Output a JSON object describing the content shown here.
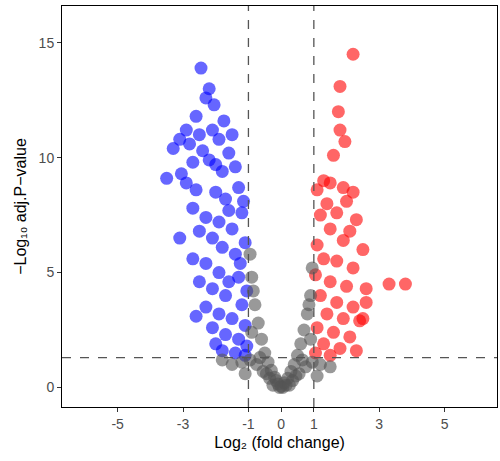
{
  "chart_data": {
    "type": "scatter",
    "x_label": "Log₂ (fold change)",
    "y_label": "−Log₁₀ adj.P−value",
    "xlim": [
      -6.7,
      6.6
    ],
    "ylim": [
      -0.85,
      16.6
    ],
    "xticks": [
      -5,
      -3,
      -1,
      0,
      1,
      3,
      5
    ],
    "yticks": [
      0,
      5,
      10,
      15
    ],
    "grid": false,
    "reference_lines": {
      "x": [
        -1,
        1
      ],
      "y": [
        1.3
      ]
    },
    "series": [
      {
        "color": "#0000ff",
        "marker": "circle",
        "points": [
          [
            -2.45,
            13.9
          ],
          [
            -2.2,
            13.0
          ],
          [
            -2.3,
            12.6
          ],
          [
            -2.05,
            12.3
          ],
          [
            -1.75,
            11.6
          ],
          [
            -2.6,
            11.8
          ],
          [
            -3.1,
            10.8
          ],
          [
            -3.3,
            10.4
          ],
          [
            -3.5,
            9.1
          ],
          [
            -3.05,
            9.3
          ],
          [
            -3.1,
            6.5
          ],
          [
            -2.7,
            9.8
          ],
          [
            -2.5,
            11.0
          ],
          [
            -2.1,
            11.2
          ],
          [
            -1.9,
            10.8
          ],
          [
            -1.6,
            10.2
          ],
          [
            -1.4,
            9.6
          ],
          [
            -2.8,
            10.6
          ],
          [
            -2.4,
            10.3
          ],
          [
            -2.2,
            9.9
          ],
          [
            -1.8,
            9.4
          ],
          [
            -1.3,
            8.7
          ],
          [
            -2.9,
            8.9
          ],
          [
            -2.6,
            8.6
          ],
          [
            -2.0,
            8.5
          ],
          [
            -1.7,
            8.2
          ],
          [
            -1.2,
            7.6
          ],
          [
            -2.7,
            7.8
          ],
          [
            -2.3,
            7.4
          ],
          [
            -1.9,
            7.2
          ],
          [
            -1.5,
            6.9
          ],
          [
            -1.1,
            6.3
          ],
          [
            -2.5,
            6.8
          ],
          [
            -2.1,
            6.5
          ],
          [
            -1.8,
            6.1
          ],
          [
            -1.4,
            5.8
          ],
          [
            -2.7,
            5.6
          ],
          [
            -2.3,
            5.4
          ],
          [
            -1.9,
            5.0
          ],
          [
            -1.3,
            4.8
          ],
          [
            -1.05,
            4.2
          ],
          [
            -2.5,
            4.6
          ],
          [
            -2.1,
            4.3
          ],
          [
            -1.7,
            4.0
          ],
          [
            -1.2,
            3.6
          ],
          [
            -2.3,
            3.5
          ],
          [
            -1.9,
            3.2
          ],
          [
            -1.5,
            3.0
          ],
          [
            -1.1,
            2.7
          ],
          [
            -2.1,
            2.6
          ],
          [
            -1.7,
            2.3
          ],
          [
            -1.3,
            2.1
          ],
          [
            -1.05,
            1.8
          ],
          [
            -1.8,
            1.6
          ],
          [
            -1.4,
            1.5
          ],
          [
            -1.1,
            1.4
          ],
          [
            -2.0,
            1.9
          ],
          [
            -2.6,
            3.1
          ],
          [
            -1.6,
            4.6
          ],
          [
            -1.25,
            5.4
          ],
          [
            -1.6,
            7.7
          ],
          [
            -1.15,
            8.1
          ],
          [
            -2.0,
            9.7
          ],
          [
            -1.5,
            11.0
          ],
          [
            -2.9,
            11.2
          ]
        ]
      },
      {
        "color": "#ff0000",
        "marker": "circle",
        "points": [
          [
            2.2,
            14.5
          ],
          [
            1.8,
            13.1
          ],
          [
            1.75,
            12.0
          ],
          [
            1.8,
            11.2
          ],
          [
            1.95,
            10.7
          ],
          [
            1.6,
            10.1
          ],
          [
            1.3,
            9.0
          ],
          [
            1.1,
            8.6
          ],
          [
            1.5,
            8.9
          ],
          [
            1.9,
            8.7
          ],
          [
            2.2,
            8.5
          ],
          [
            2.0,
            8.1
          ],
          [
            1.4,
            8.0
          ],
          [
            1.2,
            7.5
          ],
          [
            1.7,
            7.6
          ],
          [
            2.3,
            7.3
          ],
          [
            2.1,
            6.8
          ],
          [
            1.5,
            6.9
          ],
          [
            1.1,
            6.2
          ],
          [
            1.9,
            6.4
          ],
          [
            2.5,
            6.0
          ],
          [
            1.3,
            5.6
          ],
          [
            1.7,
            5.5
          ],
          [
            2.2,
            5.2
          ],
          [
            1.05,
            4.9
          ],
          [
            1.5,
            4.6
          ],
          [
            2.0,
            4.4
          ],
          [
            2.6,
            4.3
          ],
          [
            3.3,
            4.5
          ],
          [
            3.8,
            4.5
          ],
          [
            1.2,
            4.0
          ],
          [
            1.7,
            3.7
          ],
          [
            2.6,
            3.7
          ],
          [
            2.2,
            3.5
          ],
          [
            1.4,
            3.2
          ],
          [
            1.9,
            3.0
          ],
          [
            2.5,
            3.0
          ],
          [
            2.4,
            2.9
          ],
          [
            1.1,
            2.6
          ],
          [
            1.6,
            2.4
          ],
          [
            2.1,
            2.2
          ],
          [
            1.3,
            1.9
          ],
          [
            1.8,
            1.7
          ],
          [
            1.05,
            1.5
          ],
          [
            1.5,
            1.4
          ],
          [
            2.3,
            1.6
          ]
        ]
      },
      {
        "color": "#555555",
        "marker": "circle",
        "points": [
          [
            0,
            0.05
          ],
          [
            0.1,
            0.2
          ],
          [
            -0.1,
            0.15
          ],
          [
            0.2,
            0.4
          ],
          [
            -0.2,
            0.45
          ],
          [
            0.3,
            0.7
          ],
          [
            -0.3,
            0.75
          ],
          [
            0.4,
            1.0
          ],
          [
            -0.4,
            1.1
          ],
          [
            0.5,
            1.4
          ],
          [
            -0.5,
            1.5
          ],
          [
            0.6,
            1.9
          ],
          [
            -0.6,
            2.1
          ],
          [
            0.7,
            2.5
          ],
          [
            -0.7,
            2.8
          ],
          [
            0.8,
            3.2
          ],
          [
            -0.8,
            3.6
          ],
          [
            0.9,
            4.0
          ],
          [
            -0.9,
            4.8
          ],
          [
            0.95,
            5.2
          ],
          [
            -0.95,
            5.8
          ],
          [
            -0.85,
            4.2
          ],
          [
            0.85,
            3.6
          ],
          [
            0.15,
            0.1
          ],
          [
            -0.15,
            0.3
          ],
          [
            0.35,
            0.3
          ],
          [
            -0.35,
            0.4
          ],
          [
            0.55,
            0.6
          ],
          [
            -0.55,
            0.7
          ],
          [
            0.75,
            0.9
          ],
          [
            -0.75,
            1.0
          ],
          [
            0.95,
            1.1
          ],
          [
            -0.95,
            1.2
          ],
          [
            1.2,
            1.0
          ],
          [
            -1.2,
            1.1
          ],
          [
            1.5,
            0.9
          ],
          [
            -1.5,
            1.0
          ],
          [
            -1.8,
            1.2
          ],
          [
            1.1,
            0.5
          ],
          [
            -1.1,
            0.6
          ],
          [
            0.65,
            1.2
          ],
          [
            -0.65,
            1.3
          ],
          [
            0.45,
            0.5
          ],
          [
            -0.45,
            0.6
          ],
          [
            0.05,
            0.0
          ],
          [
            -0.05,
            0.0
          ],
          [
            0.25,
            0.1
          ],
          [
            -0.25,
            0.1
          ],
          [
            0.9,
            2.1
          ],
          [
            -0.9,
            2.4
          ]
        ]
      }
    ]
  }
}
